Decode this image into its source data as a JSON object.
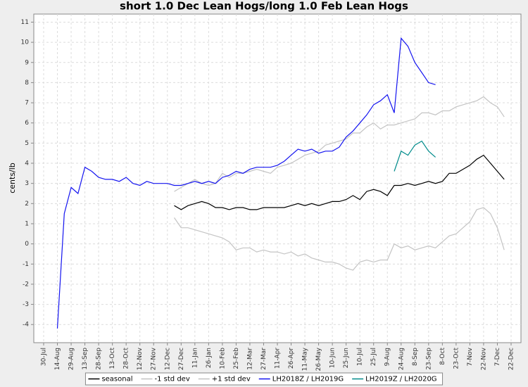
{
  "chart_data": {
    "type": "line",
    "title": "short 1.0 Dec Lean Hogs/long 1.0 Feb Lean Hogs",
    "y_label": "cents/lb",
    "categories": [
      "30-Jul",
      null,
      "14-Aug",
      null,
      "29-Aug",
      null,
      "13-Sep",
      null,
      "28-Sep",
      null,
      "13-Oct",
      null,
      "28-Oct",
      null,
      "12-Nov",
      null,
      "27-Nov",
      null,
      "12-Dec",
      null,
      "27-Dec",
      null,
      "11-Jan",
      null,
      "26-Jan",
      null,
      "10-Feb",
      null,
      "25-Feb",
      null,
      "12-Mar",
      null,
      "27-Mar",
      null,
      "11-Apr",
      null,
      "26-Apr",
      null,
      "11-May",
      null,
      "26-May",
      null,
      "10-Jun",
      null,
      "25-Jun",
      null,
      "10-Jul",
      null,
      "25-Jul",
      null,
      "9-Aug",
      null,
      "24-Aug",
      null,
      "8-Sep",
      null,
      "23-Sep",
      null,
      "8-Oct",
      null,
      "23-Oct",
      null,
      "7-Nov",
      null,
      "22-Nov",
      null,
      "7-Dec",
      null,
      "22-Dec"
    ],
    "ylim": [
      -4.9,
      11.4
    ],
    "yticks": [
      -4,
      -3,
      -2,
      -1,
      0,
      1,
      2,
      3,
      4,
      5,
      6,
      7,
      8,
      9,
      10,
      11
    ],
    "grid": true,
    "legend": "bottom",
    "series": [
      {
        "name": "seasonal",
        "color": "#000000",
        "values": [
          null,
          null,
          null,
          null,
          null,
          null,
          null,
          null,
          null,
          null,
          null,
          null,
          null,
          null,
          null,
          null,
          null,
          null,
          null,
          1.9,
          1.7,
          1.9,
          2.0,
          2.1,
          2.0,
          1.8,
          1.8,
          1.7,
          1.8,
          1.8,
          1.7,
          1.7,
          1.8,
          1.8,
          1.8,
          1.8,
          1.9,
          2.0,
          1.9,
          2.0,
          1.9,
          2.0,
          2.1,
          2.1,
          2.2,
          2.4,
          2.2,
          2.6,
          2.7,
          2.6,
          2.4,
          2.9,
          2.9,
          3.0,
          2.9,
          3.0,
          3.1,
          3.0,
          3.1,
          3.5,
          3.5,
          3.7,
          3.9,
          4.2,
          4.4,
          4.0,
          3.6,
          3.2,
          null
        ]
      },
      {
        "name": "-1 std dev",
        "color": "#c4c4c4",
        "values": [
          null,
          null,
          null,
          null,
          null,
          null,
          null,
          null,
          null,
          null,
          null,
          null,
          null,
          null,
          null,
          null,
          null,
          null,
          null,
          1.3,
          0.8,
          0.8,
          0.7,
          0.6,
          0.5,
          0.4,
          0.3,
          0.1,
          -0.3,
          -0.2,
          -0.2,
          -0.4,
          -0.3,
          -0.4,
          -0.4,
          -0.5,
          -0.4,
          -0.6,
          -0.5,
          -0.7,
          -0.8,
          -0.9,
          -0.9,
          -1.0,
          -1.2,
          -1.3,
          -0.9,
          -0.8,
          -0.9,
          -0.8,
          -0.8,
          0.0,
          -0.2,
          -0.1,
          -0.3,
          -0.2,
          -0.1,
          -0.2,
          0.1,
          0.4,
          0.5,
          0.8,
          1.1,
          1.7,
          1.8,
          1.5,
          0.8,
          -0.3,
          null
        ]
      },
      {
        "name": "+1 std dev",
        "color": "#c4c4c4",
        "values": [
          null,
          null,
          null,
          null,
          null,
          null,
          null,
          null,
          null,
          null,
          null,
          null,
          null,
          null,
          null,
          null,
          null,
          null,
          null,
          2.6,
          2.8,
          3.0,
          3.2,
          3.0,
          2.9,
          3.0,
          3.5,
          3.3,
          3.5,
          3.5,
          3.6,
          3.7,
          3.6,
          3.5,
          3.8,
          3.9,
          4.0,
          4.2,
          4.4,
          4.5,
          4.6,
          4.9,
          5.0,
          5.1,
          5.2,
          5.5,
          5.5,
          5.8,
          6.0,
          5.7,
          5.9,
          5.9,
          6.0,
          6.1,
          6.2,
          6.5,
          6.5,
          6.4,
          6.6,
          6.6,
          6.8,
          6.9,
          7.0,
          7.1,
          7.3,
          7.0,
          6.8,
          6.3,
          null
        ]
      },
      {
        "name": "LH2018Z / LH2019G",
        "color": "#1414f0",
        "values": [
          null,
          null,
          -4.2,
          1.5,
          2.8,
          2.5,
          3.8,
          3.6,
          3.3,
          3.2,
          3.2,
          3.1,
          3.3,
          3.0,
          2.9,
          3.1,
          3.0,
          3.0,
          3.0,
          2.9,
          2.9,
          3.0,
          3.1,
          3.0,
          3.1,
          3.0,
          3.3,
          3.4,
          3.6,
          3.5,
          3.7,
          3.8,
          3.8,
          3.8,
          3.9,
          4.1,
          4.4,
          4.7,
          4.6,
          4.7,
          4.5,
          4.6,
          4.6,
          4.8,
          5.3,
          5.6,
          6.0,
          6.4,
          6.9,
          7.1,
          7.4,
          6.5,
          10.2,
          9.8,
          9.0,
          8.5,
          8.0,
          7.9,
          null,
          null,
          null,
          null,
          null,
          null,
          null,
          null,
          null,
          null,
          null
        ]
      },
      {
        "name": "LH2019Z / LH2020G",
        "color": "#008b8b",
        "values": [
          null,
          null,
          null,
          null,
          null,
          null,
          null,
          null,
          null,
          null,
          null,
          null,
          null,
          null,
          null,
          null,
          null,
          null,
          null,
          null,
          null,
          null,
          null,
          null,
          null,
          null,
          null,
          null,
          null,
          null,
          null,
          null,
          null,
          null,
          null,
          null,
          null,
          null,
          null,
          null,
          null,
          null,
          null,
          null,
          null,
          null,
          null,
          null,
          null,
          null,
          null,
          3.6,
          4.6,
          4.4,
          4.9,
          5.1,
          4.6,
          4.3,
          null,
          null,
          null,
          null,
          null,
          null,
          null,
          null,
          null,
          null,
          null
        ]
      }
    ]
  }
}
